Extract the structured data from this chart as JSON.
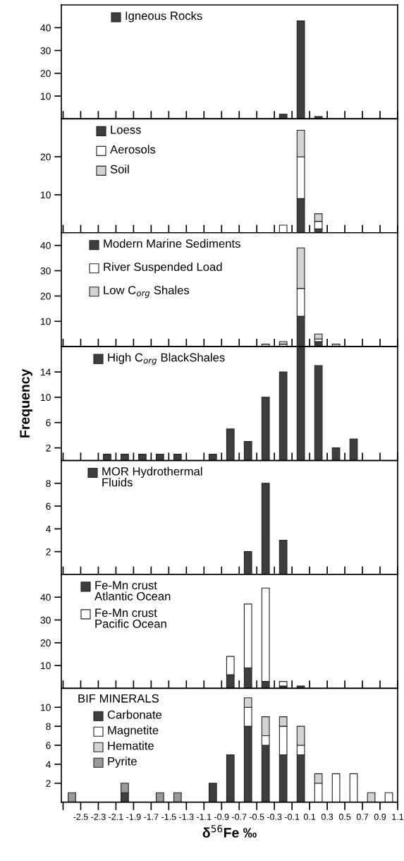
{
  "chart_data": [
    {
      "type": "bar",
      "stacked": true,
      "legend": "top left",
      "tick_labels": "y",
      "xlim": [
        -2.72,
        1.1
      ],
      "ylim": [
        0,
        50
      ],
      "yticks": [
        10,
        20,
        30,
        40
      ],
      "xticks": [
        -2.7,
        -2.5,
        -2.3,
        -2.1,
        -1.9,
        -1.7,
        -1.5,
        -1.3,
        -1.1,
        -0.9,
        -0.7,
        -0.5,
        -0.3,
        -0.1,
        0.1,
        0.3,
        0.5,
        0.7,
        0.9,
        1.1
      ],
      "x": [
        -0.2,
        0.0,
        0.2
      ],
      "series": [
        {
          "name": "Igneous Rocks",
          "color": "#3d3f3e",
          "values": [
            2,
            43,
            1
          ]
        }
      ]
    },
    {
      "type": "bar",
      "stacked": true,
      "legend": "top left",
      "tick_labels": "y",
      "xlim": [
        -2.72,
        1.1
      ],
      "ylim": [
        0,
        30
      ],
      "yticks": [
        10,
        20
      ],
      "xticks": [
        -2.7,
        -2.5,
        -2.3,
        -2.1,
        -1.9,
        -1.7,
        -1.5,
        -1.3,
        -1.1,
        -0.9,
        -0.7,
        -0.5,
        -0.3,
        -0.1,
        0.1,
        0.3,
        0.5,
        0.7,
        0.9,
        1.1
      ],
      "x": [
        -0.2,
        0.0,
        0.2
      ],
      "series": [
        {
          "name": "Loess",
          "color": "#3d3f3e",
          "values": [
            null,
            9,
            1
          ]
        },
        {
          "name": "Aerosols",
          "color": "#ffffff",
          "values": [
            2,
            11,
            2
          ]
        },
        {
          "name": "Soil",
          "color": "#d3d3d3",
          "values": [
            null,
            7,
            2
          ]
        }
      ]
    },
    {
      "type": "bar",
      "stacked": true,
      "legend": "top left",
      "tick_labels": "y",
      "xlim": [
        -2.72,
        1.1
      ],
      "ylim": [
        0,
        45
      ],
      "yticks": [
        10,
        20,
        30,
        40
      ],
      "xticks": [
        -2.7,
        -2.5,
        -2.3,
        -2.1,
        -1.9,
        -1.7,
        -1.5,
        -1.3,
        -1.1,
        -0.9,
        -0.7,
        -0.5,
        -0.3,
        -0.1,
        0.1,
        0.3,
        0.5,
        0.7,
        0.9,
        1.1
      ],
      "x": [
        -0.4,
        -0.2,
        0.0,
        0.2,
        0.4
      ],
      "series": [
        {
          "name": "Modern Marine Sediments",
          "color": "#3d3f3e",
          "values": [
            null,
            null,
            12,
            2,
            null
          ]
        },
        {
          "name": "River Suspended Load",
          "color": "#ffffff",
          "values": [
            null,
            1,
            11,
            1,
            null
          ]
        },
        {
          "name": "Low C$_{org}$ Shales",
          "color": "#d3d3d3",
          "values": [
            1,
            1,
            16,
            2,
            1
          ]
        }
      ]
    },
    {
      "type": "bar",
      "stacked": true,
      "legend": "top left",
      "tick_labels": "y",
      "ylabel": "Frequency",
      "xlim": [
        -2.72,
        1.1
      ],
      "ylim": [
        0,
        18
      ],
      "yticks": [
        2,
        6,
        10,
        14
      ],
      "xticks": [
        -2.7,
        -2.5,
        -2.3,
        -2.1,
        -1.9,
        -1.7,
        -1.5,
        -1.3,
        -1.1,
        -0.9,
        -0.7,
        -0.5,
        -0.3,
        -0.1,
        0.1,
        0.3,
        0.5,
        0.7,
        0.9,
        1.1
      ],
      "x": [
        -2.2,
        -2.0,
        -1.8,
        -1.6,
        -1.4,
        -1.0,
        -0.8,
        -0.6,
        -0.4,
        -0.2,
        0.0,
        0.2,
        0.4,
        0.6
      ],
      "series": [
        {
          "name": "High C$_{org}$ BlackShales",
          "color": "#3d3f3e",
          "values": [
            1,
            1,
            1,
            1,
            1,
            1,
            5,
            3,
            10,
            14,
            18,
            15,
            2,
            3.4
          ]
        }
      ]
    },
    {
      "type": "bar",
      "stacked": true,
      "legend": "top left",
      "tick_labels": "y",
      "xlim": [
        -2.72,
        1.1
      ],
      "ylim": [
        0,
        10
      ],
      "yticks": [
        2,
        4,
        6,
        8
      ],
      "xticks": [
        -2.7,
        -2.5,
        -2.3,
        -2.1,
        -1.9,
        -1.7,
        -1.5,
        -1.3,
        -1.1,
        -0.9,
        -0.7,
        -0.5,
        -0.3,
        -0.1,
        0.1,
        0.3,
        0.5,
        0.7,
        0.9,
        1.1
      ],
      "x": [
        -0.6,
        -0.4,
        -0.2
      ],
      "series": [
        {
          "name": "MOR Hydrothermal\nFluids",
          "color": "#3d3f3e",
          "values": [
            2,
            8,
            3
          ]
        }
      ]
    },
    {
      "type": "bar",
      "stacked": true,
      "legend": "top left",
      "tick_labels": "y",
      "xlim": [
        -2.72,
        1.1
      ],
      "ylim": [
        0,
        50
      ],
      "yticks": [
        10,
        20,
        30,
        40
      ],
      "xticks": [
        -2.7,
        -2.5,
        -2.3,
        -2.1,
        -1.9,
        -1.7,
        -1.5,
        -1.3,
        -1.1,
        -0.9,
        -0.7,
        -0.5,
        -0.3,
        -0.1,
        0.1,
        0.3,
        0.5,
        0.7,
        0.9,
        1.1
      ],
      "x": [
        -0.8,
        -0.6,
        -0.4,
        -0.2,
        0.0
      ],
      "series": [
        {
          "name": "Fe-Mn crust\nAtlantic Ocean",
          "color": "#3d3f3e",
          "values": [
            6,
            9,
            3,
            1,
            1
          ]
        },
        {
          "name": "Fe-Mn crust\nPacific Ocean",
          "color": "#ffffff",
          "values": [
            8,
            28,
            41,
            2,
            null
          ]
        }
      ]
    },
    {
      "type": "bar",
      "stacked": true,
      "legend": "top left",
      "legend_title": "BIF MINERALS",
      "xlabel": "δ$^{56}$Fe ‰",
      "xlim": [
        -2.72,
        1.1
      ],
      "ylim": [
        0,
        12
      ],
      "yticks": [
        2,
        4,
        6,
        8,
        10
      ],
      "xticks": [
        {
          "value": -2.7,
          "label": null
        },
        -2.5,
        -2.3,
        -2.1,
        -1.9,
        -1.7,
        -1.5,
        -1.3,
        -1.1,
        -0.9,
        -0.7,
        -0.5,
        -0.3,
        -0.1,
        0.1,
        0.3,
        0.5,
        0.7,
        0.9,
        1.1
      ],
      "x": [
        -2.6,
        -2.0,
        -1.6,
        -1.4,
        -1.0,
        -0.8,
        -0.6,
        -0.4,
        -0.2,
        0.0,
        0.2,
        0.4,
        0.6,
        0.8,
        1.0
      ],
      "series": [
        {
          "name": "Carbonate",
          "color": "#3d3f3e",
          "values": [
            null,
            1,
            null,
            null,
            2,
            5,
            8,
            6,
            5,
            5,
            null,
            null,
            null,
            null,
            null
          ]
        },
        {
          "name": "Magnetite",
          "color": "#ffffff",
          "values": [
            null,
            null,
            null,
            null,
            null,
            null,
            2,
            1,
            3,
            1,
            2,
            3,
            3,
            null,
            1
          ]
        },
        {
          "name": "Hematite",
          "color": "#d3d3d3",
          "values": [
            null,
            null,
            null,
            null,
            null,
            null,
            1,
            2,
            1,
            2,
            1,
            null,
            null,
            1,
            null
          ]
        },
        {
          "name": "Pyrite",
          "color": "#999999",
          "values": [
            1,
            1,
            1,
            1,
            null,
            null,
            null,
            null,
            null,
            null,
            null,
            null,
            null,
            null,
            null
          ]
        }
      ]
    }
  ]
}
